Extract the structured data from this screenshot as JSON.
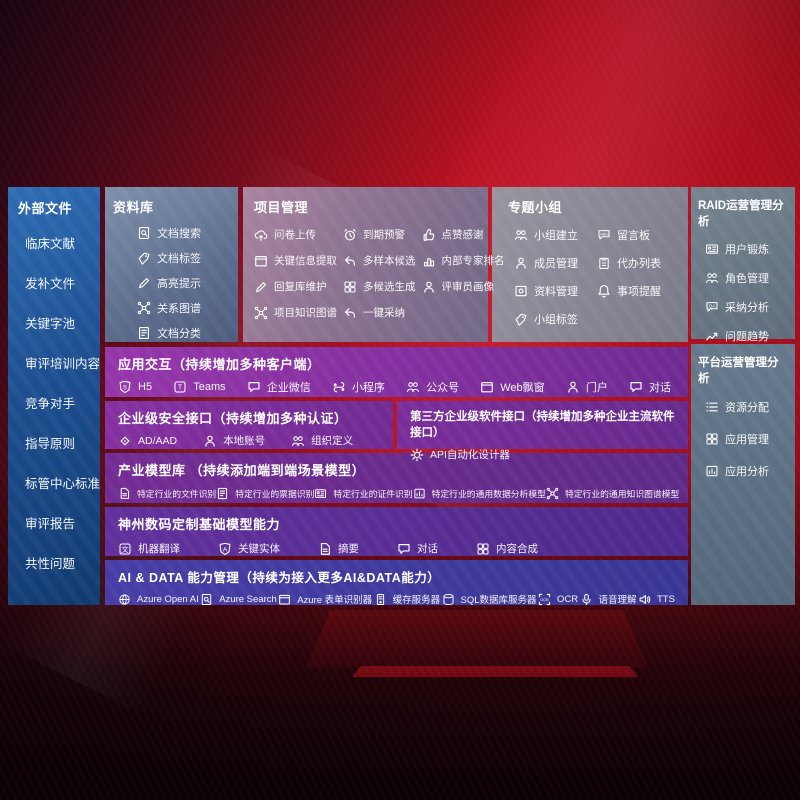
{
  "palette": {
    "background_red": "#a80f1d",
    "background_dark": "#1d0512",
    "sidebar_blue": "#1d4f91",
    "library_slate": "#5d6d8d",
    "project_mauve": "#8a7291",
    "group_gray": "#868492",
    "raid_slate": "#5f6c7c",
    "platform_slate": "#53667a",
    "band_purple": "#8330a0",
    "band_deep_purple": "#5e2a87",
    "band_indigo": "#3a3694",
    "text": "#ffffff"
  },
  "sidebar": {
    "title": "外部文件",
    "items": [
      "临床文献",
      "发补文件",
      "关键字池",
      "审评培训内容",
      "竞争对手",
      "指导原则",
      "标管中心标准",
      "审评报告",
      "共性问题"
    ]
  },
  "panels": {
    "library": {
      "title": "资料库",
      "items": [
        {
          "icon": "doc-search",
          "label": "文档搜索"
        },
        {
          "icon": "doc-tag",
          "label": "文档标签"
        },
        {
          "icon": "highlight",
          "label": "高亮提示"
        },
        {
          "icon": "relation-graph",
          "label": "关系图谱"
        },
        {
          "icon": "doc-category",
          "label": "文档分类"
        }
      ]
    },
    "project": {
      "title": "项目管理",
      "items": [
        {
          "icon": "questionnaire-upload",
          "label": "问卷上传"
        },
        {
          "icon": "due-alert",
          "label": "到期预警"
        },
        {
          "icon": "like-thanks",
          "label": "点赞感谢"
        },
        {
          "icon": "key-info-extract",
          "label": "关键信息提取"
        },
        {
          "icon": "multi-sample-candidate",
          "label": "多样本候选"
        },
        {
          "icon": "expert-ranking",
          "label": "内部专家排名"
        },
        {
          "icon": "reply-lib-maintain",
          "label": "回复库维护"
        },
        {
          "icon": "multi-candidate-gen",
          "label": "多候选生成"
        },
        {
          "icon": "reviewer-portrait",
          "label": "评审员画像"
        },
        {
          "icon": "project-knowledge-graph",
          "label": "项目知识图谱"
        },
        {
          "icon": "one-click-adopt",
          "label": "一键采纳"
        }
      ]
    },
    "group": {
      "title": "专题小组",
      "items": [
        {
          "icon": "group-create",
          "label": "小组建立"
        },
        {
          "icon": "message-board",
          "label": "留言板"
        },
        {
          "icon": "member-manage",
          "label": "成员管理"
        },
        {
          "icon": "todo-list",
          "label": "代办列表"
        },
        {
          "icon": "material-manage",
          "label": "资料管理"
        },
        {
          "icon": "reminder",
          "label": "事项提醒"
        },
        {
          "icon": "group-tag",
          "label": "小组标签"
        }
      ]
    },
    "raid": {
      "title": "RAID运营管理分析",
      "items": [
        {
          "icon": "user-training",
          "label": "用户锻炼"
        },
        {
          "icon": "role-manage",
          "label": "角色管理"
        },
        {
          "icon": "adoption-analysis",
          "label": "采纳分析"
        },
        {
          "icon": "issue-trend",
          "label": "问题趋势"
        }
      ]
    },
    "platform": {
      "title": "平台运营管理分析",
      "items": [
        {
          "icon": "resource-allocation",
          "label": "资源分配"
        },
        {
          "icon": "app-manage",
          "label": "应用管理"
        },
        {
          "icon": "app-analysis",
          "label": "应用分析"
        }
      ]
    }
  },
  "bands": {
    "app_interaction": {
      "title": "应用交互（持续增加多种客户端）",
      "items": [
        {
          "icon": "h5",
          "label": "H5"
        },
        {
          "icon": "teams",
          "label": "Teams"
        },
        {
          "icon": "wecom",
          "label": "企业微信"
        },
        {
          "icon": "miniprogram",
          "label": "小程序"
        },
        {
          "icon": "official-account",
          "label": "公众号"
        },
        {
          "icon": "web-popup",
          "label": "Web飘窗"
        },
        {
          "icon": "portal",
          "label": "门户"
        },
        {
          "icon": "dialog",
          "label": "对话"
        }
      ]
    },
    "security": {
      "title": "企业级安全接口（持续增加多种认证）",
      "items": [
        {
          "icon": "ad-aad",
          "label": "AD/AAD"
        },
        {
          "icon": "local-account",
          "label": "本地账号"
        },
        {
          "icon": "org-define",
          "label": "组织定义"
        }
      ]
    },
    "thirdparty": {
      "title": "第三方企业级软件接口（持续增加多种企业主流软件接口）",
      "items": [
        {
          "icon": "api-designer",
          "label": "API自动化设计器"
        }
      ]
    },
    "industry_models": {
      "title": "产业模型库 （持续添加端到端场景模型）",
      "items": [
        {
          "icon": "file-recognition",
          "label": "特定行业的文件识别"
        },
        {
          "icon": "receipt-recognition",
          "label": "特定行业的票据识别"
        },
        {
          "icon": "cert-recognition",
          "label": "特定行业的证件识别"
        },
        {
          "icon": "data-analysis-model",
          "label": "特定行业的通用数据分析模型"
        },
        {
          "icon": "knowledge-graph-model",
          "label": "特定行业的通用知识图谱模型"
        }
      ]
    },
    "base_models": {
      "title": "神州数码定制基础模型能力",
      "items": [
        {
          "icon": "machine-translation",
          "label": "机器翻译"
        },
        {
          "icon": "key-entity",
          "label": "关键实体"
        },
        {
          "icon": "summary",
          "label": "摘要"
        },
        {
          "icon": "dialog",
          "label": "对话"
        },
        {
          "icon": "content-synthesis",
          "label": "内容合成"
        }
      ]
    },
    "ai_data": {
      "title": "AI & DATA 能力管理（持续为接入更多AI&DATA能力）",
      "items": [
        {
          "icon": "azure-openai",
          "label": "Azure Open AI"
        },
        {
          "icon": "azure-search",
          "label": "Azure Search"
        },
        {
          "icon": "azure-form",
          "label": "Azure 表单识别器"
        },
        {
          "icon": "cache-server",
          "label": "缓存服务器"
        },
        {
          "icon": "sql-server",
          "label": "SQL数据库服务器"
        },
        {
          "icon": "ocr",
          "label": "OCR"
        },
        {
          "icon": "speech-understanding",
          "label": "语音理解"
        },
        {
          "icon": "tts",
          "label": "TTS"
        }
      ]
    }
  }
}
